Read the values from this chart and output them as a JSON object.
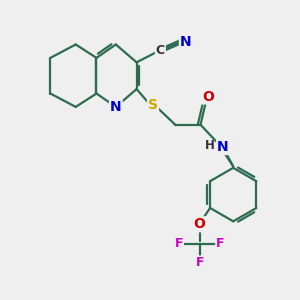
{
  "bg_color": "#efefef",
  "bond_color": "#2d6b52",
  "atom_colors": {
    "N": "#0000cc",
    "S": "#ccaa00",
    "O": "#cc0000",
    "F": "#cc00cc",
    "C_label": "#333333"
  },
  "figsize": [
    3.0,
    3.0
  ],
  "dpi": 100
}
